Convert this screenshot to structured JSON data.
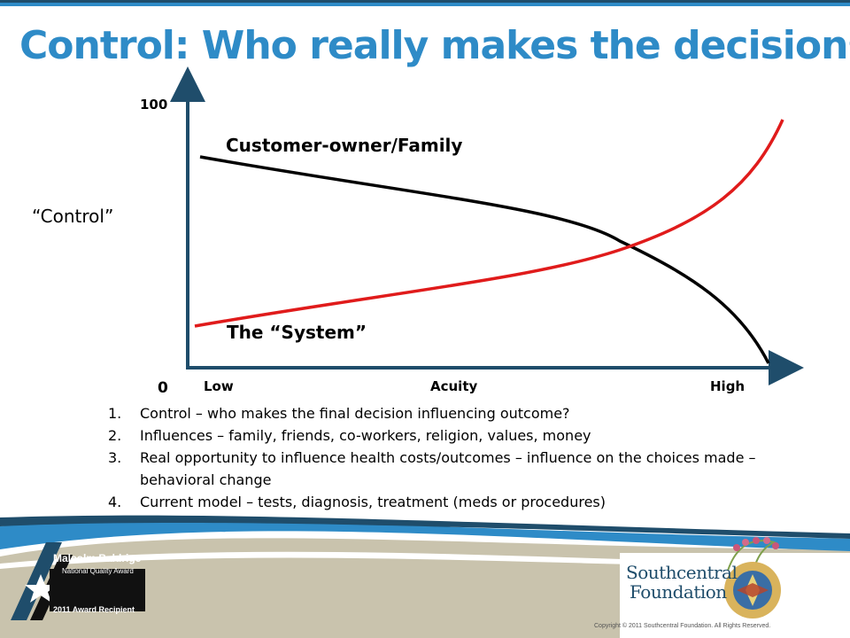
{
  "slide": {
    "title": "Control: Who really makes the decisions",
    "title_color": "#2e8bc7"
  },
  "diagram": {
    "y_max_label": "100",
    "y_min_label": "0",
    "y_axis_label": "“Control”",
    "x_low_label": "Low",
    "x_mid_label": "Acuity",
    "x_high_label": "High",
    "curves": [
      {
        "label": "Customer-owner/Family",
        "color": "#000000"
      },
      {
        "label": "The “System”",
        "color": "#e01b1b"
      }
    ]
  },
  "notes": [
    {
      "num": "1.",
      "text": "Control – who makes the final decision influencing outcome?"
    },
    {
      "num": "2.",
      "text": "Influences – family, friends, co-workers, religion, values, money"
    },
    {
      "num": "3.",
      "text": "Real opportunity to influence health costs/outcomes – influence on the choices made – behavioral change"
    },
    {
      "num": "4.",
      "text": "Current model – tests, diagnosis, treatment (meds or procedures)"
    }
  ],
  "footer": {
    "baldrige_name": "Malcolm Baldrige",
    "baldrige_award": "National Quality Award",
    "baldrige_year": "2011 Award Recipient",
    "org_line1": "Southcentral",
    "org_line2": "Foundation",
    "copyright": "Copyright © 2011 Southcentral Foundation. All Rights Reserved.",
    "band_color": "#2e8bc7",
    "tan_color": "#c9c3ad"
  }
}
